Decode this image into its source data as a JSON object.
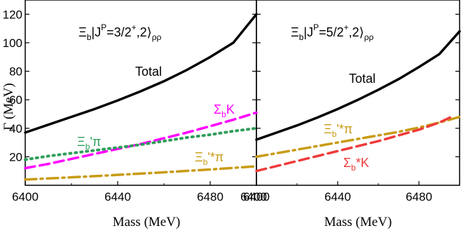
{
  "chart_data": [
    {
      "type": "line",
      "title": "",
      "header_label": {
        "xi": "Ξ",
        "b": "b",
        "mid": "|J",
        "P": "P",
        "eq": "=3/2",
        "plus": "+",
        "tail": ",2⟩",
        "rho": "ρρ"
      },
      "xlabel": "Mass (MeV)",
      "ylabel": "Γ (MeV)",
      "xlim": [
        6400,
        6500
      ],
      "ylim": [
        0,
        130
      ],
      "xticks": [
        6400,
        6440,
        6480
      ],
      "yticks": [
        20,
        40,
        60,
        80,
        100,
        120
      ],
      "series": [
        {
          "name": "Total",
          "style": "solid",
          "color": "#000000",
          "x": [
            6400,
            6410,
            6420,
            6430,
            6440,
            6450,
            6460,
            6470,
            6480,
            6490,
            6500
          ],
          "y": [
            37,
            42.5,
            48,
            53.5,
            59.5,
            66,
            73,
            81,
            90,
            100,
            120
          ]
        },
        {
          "name": "Σ_bK",
          "style": "dash",
          "color": "#ff00ff",
          "x": [
            6400,
            6410,
            6420,
            6430,
            6440,
            6450,
            6460,
            6470,
            6480,
            6490,
            6500
          ],
          "y": [
            12,
            15,
            18.5,
            22,
            25.5,
            29,
            33,
            37,
            41.5,
            46,
            51
          ]
        },
        {
          "name": "Ξ_b'π",
          "style": "dot",
          "color": "#2e9e5a",
          "x": [
            6400,
            6410,
            6420,
            6430,
            6440,
            6450,
            6460,
            6470,
            6480,
            6490,
            6500
          ],
          "y": [
            18,
            20.5,
            22.5,
            24.5,
            26.5,
            28.5,
            31,
            33.5,
            35.5,
            38,
            40
          ]
        },
        {
          "name": "Ξ_b'*π",
          "style": "dashdot",
          "color": "#c89b14",
          "x": [
            6400,
            6410,
            6420,
            6430,
            6440,
            6450,
            6460,
            6470,
            6480,
            6490,
            6500
          ],
          "y": [
            4,
            4.8,
            5.6,
            6.4,
            7.3,
            8.2,
            9.1,
            10.1,
            11.1,
            12.2,
            13.3
          ]
        }
      ],
      "labels": {
        "total": "Total",
        "sigma": {
          "main": "Σ",
          "sub": "b",
          "tail": "K"
        },
        "xipi": {
          "main": "Ξ",
          "sub": "b",
          "tail": "'π"
        },
        "xistarpi": {
          "main": "Ξ",
          "sub": "b",
          "tail": "'*π"
        }
      }
    },
    {
      "type": "line",
      "title": "",
      "header_label": {
        "xi": "Ξ",
        "b": "b",
        "mid": "|J",
        "P": "P",
        "eq": "=5/2",
        "plus": "+",
        "tail": ",2⟩",
        "rho": "ρρ"
      },
      "xlabel": "Mass (MeV)",
      "ylabel": "",
      "xlim": [
        6400,
        6500
      ],
      "ylim": [
        0,
        130
      ],
      "xticks": [
        6400,
        6440,
        6480
      ],
      "yticks": [],
      "series": [
        {
          "name": "Total",
          "style": "solid",
          "color": "#000000",
          "x": [
            6400,
            6410,
            6420,
            6430,
            6440,
            6450,
            6460,
            6470,
            6480,
            6490,
            6500
          ],
          "y": [
            32,
            37,
            42,
            47.5,
            53.5,
            60,
            67,
            74.5,
            83,
            92,
            108
          ]
        },
        {
          "name": "Ξ_b'*π",
          "style": "dashdot",
          "color": "#c89b14",
          "x": [
            6400,
            6410,
            6420,
            6430,
            6440,
            6450,
            6460,
            6470,
            6480,
            6490,
            6500
          ],
          "y": [
            20,
            22.5,
            25,
            27.5,
            30,
            32.5,
            35,
            37.5,
            40.5,
            44,
            48
          ]
        },
        {
          "name": "Σ_b*K",
          "style": "dash",
          "color": "#ee3b3b",
          "x": [
            6400,
            6410,
            6420,
            6430,
            6440,
            6450,
            6460,
            6470,
            6480,
            6490,
            6496
          ],
          "y": [
            10,
            13.5,
            17,
            20.5,
            24,
            27.5,
            31,
            35,
            39,
            44,
            48
          ]
        }
      ],
      "labels": {
        "total": "Total",
        "xistarpi": {
          "main": "Ξ",
          "sub": "b",
          "tail": "'*π"
        },
        "sigmastar": {
          "main": "Σ",
          "sub": "b",
          "tail": "*K"
        }
      }
    }
  ]
}
